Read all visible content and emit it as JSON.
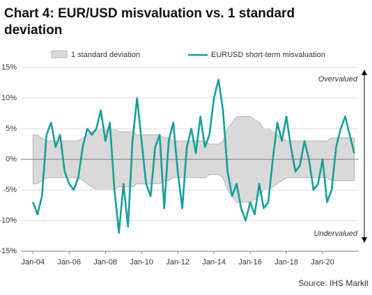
{
  "chart_data": {
    "type": "line",
    "title": [
      "Chart 4: EUR/USD misvaluation vs. 1 standard",
      "deviation"
    ],
    "x": [
      "2004-01",
      "2004-04",
      "2004-07",
      "2004-10",
      "2005-01",
      "2005-04",
      "2005-07",
      "2005-10",
      "2006-01",
      "2006-04",
      "2006-07",
      "2006-10",
      "2007-01",
      "2007-04",
      "2007-07",
      "2007-10",
      "2008-01",
      "2008-04",
      "2008-07",
      "2008-10",
      "2009-01",
      "2009-04",
      "2009-07",
      "2009-10",
      "2010-01",
      "2010-04",
      "2010-07",
      "2010-10",
      "2011-01",
      "2011-04",
      "2011-07",
      "2011-10",
      "2012-01",
      "2012-04",
      "2012-07",
      "2012-10",
      "2013-01",
      "2013-04",
      "2013-07",
      "2013-10",
      "2014-01",
      "2014-04",
      "2014-07",
      "2014-10",
      "2015-01",
      "2015-04",
      "2015-07",
      "2015-10",
      "2016-01",
      "2016-04",
      "2016-07",
      "2016-10",
      "2017-01",
      "2017-04",
      "2017-07",
      "2017-10",
      "2018-01",
      "2018-04",
      "2018-07",
      "2018-10",
      "2019-01",
      "2019-04",
      "2019-07",
      "2019-10",
      "2020-01",
      "2020-04",
      "2020-07",
      "2020-10",
      "2021-01",
      "2021-04",
      "2021-07",
      "2021-10"
    ],
    "series": [
      {
        "name": "1 standard deviation",
        "color": "#d9d9d9",
        "values": [
          4,
          4,
          3.5,
          3,
          3,
          3,
          3,
          3,
          3,
          3,
          3,
          3.5,
          4,
          4.5,
          5,
          5,
          5,
          5,
          5,
          4.5,
          4.5,
          4.5,
          4.5,
          4,
          4,
          4,
          4,
          4,
          4,
          3.5,
          3.5,
          3,
          3,
          3,
          3,
          3,
          3,
          3,
          3,
          2.5,
          2.5,
          2.5,
          3,
          5,
          6,
          7,
          7,
          7,
          7,
          6.5,
          6,
          5,
          5,
          4.5,
          4,
          3.5,
          3,
          3,
          3,
          3,
          3,
          3,
          3,
          3,
          3,
          3,
          3.5,
          3.5,
          3.5,
          3.5,
          3.5,
          3.5
        ]
      },
      {
        "name": "EURUSD short-term misvaluation",
        "color": "#159f98",
        "values": [
          -7,
          -9,
          -6,
          4,
          6,
          2,
          4,
          -2,
          -4,
          -5,
          -3,
          2,
          5,
          4,
          5,
          8,
          3,
          6,
          -5,
          -12,
          -4,
          -11,
          3,
          10,
          3,
          -4,
          -6,
          2,
          4,
          -8,
          3,
          6,
          -2,
          -8,
          2,
          5,
          1,
          7,
          2,
          4,
          10,
          13,
          8,
          -2,
          -6,
          -4,
          -8,
          -10,
          -7,
          -9,
          -4,
          -8,
          -7,
          0,
          6,
          3,
          7,
          2,
          -2,
          -1,
          3,
          0,
          -5,
          -4,
          0,
          -7,
          -5,
          2,
          5,
          7,
          4,
          1
        ]
      }
    ],
    "xlim": [
      "2003-05",
      "2022-01"
    ],
    "xticks": [
      {
        "value": "2004-01",
        "label": "Jan-04"
      },
      {
        "value": "2006-01",
        "label": "Jan-06"
      },
      {
        "value": "2008-01",
        "label": "Jan-08"
      },
      {
        "value": "2010-01",
        "label": "Jan-10"
      },
      {
        "value": "2012-01",
        "label": "Jan-12"
      },
      {
        "value": "2014-01",
        "label": "Jan-14"
      },
      {
        "value": "2016-01",
        "label": "Jan-16"
      },
      {
        "value": "2018-01",
        "label": "Jan-18"
      },
      {
        "value": "2020-01",
        "label": "Jan-20"
      }
    ],
    "ylim": [
      -15,
      15
    ],
    "yticks": [
      {
        "value": -15,
        "label": "-15%"
      },
      {
        "value": -10,
        "label": "-10%"
      },
      {
        "value": -5,
        "label": "-5%"
      },
      {
        "value": 0,
        "label": "0%"
      },
      {
        "value": 5,
        "label": "5%"
      },
      {
        "value": 10,
        "label": "10%"
      },
      {
        "value": 15,
        "label": "15%"
      }
    ],
    "grid": true,
    "annotations": [
      "Overvalued",
      "Undervalued"
    ],
    "source": "Source: IHS Markit"
  }
}
